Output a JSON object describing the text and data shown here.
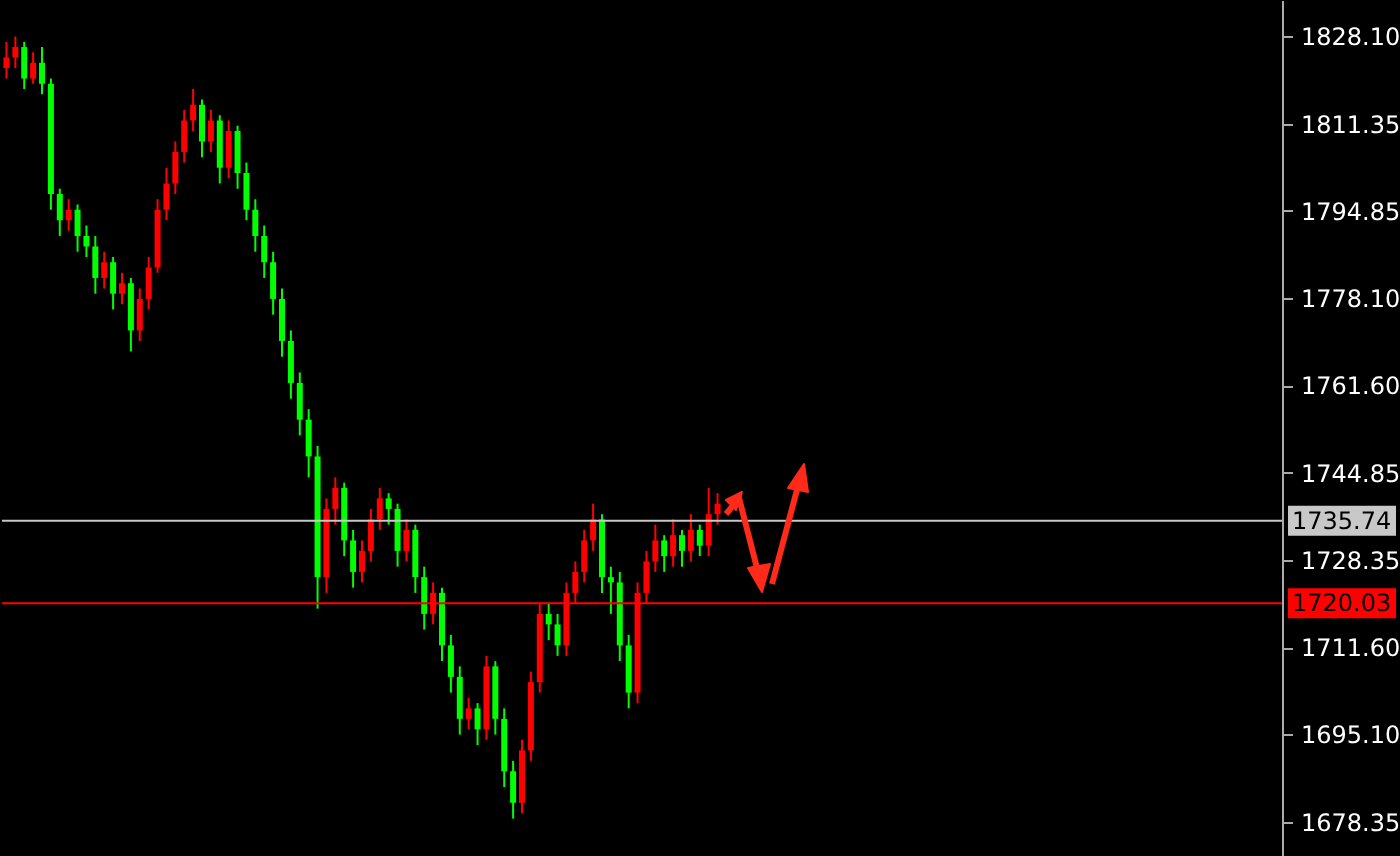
{
  "chart_data": {
    "type": "candlestick",
    "categories": [
      null,
      null,
      null,
      null,
      null,
      null,
      null,
      null,
      null,
      null,
      null,
      null,
      null,
      null,
      null,
      null,
      null,
      null,
      null,
      null,
      null,
      null,
      null,
      null,
      null,
      null,
      null,
      null,
      null,
      null,
      null,
      null,
      null,
      null,
      null,
      null,
      null,
      null,
      null,
      null,
      null,
      null,
      null,
      null,
      null,
      null,
      null,
      null,
      null,
      null,
      null,
      null,
      null,
      null,
      null,
      null,
      null,
      null,
      null,
      null,
      null,
      null,
      null,
      null,
      null,
      null,
      null,
      null,
      null,
      null,
      null,
      null,
      null,
      null,
      null,
      null,
      null,
      null,
      null,
      null,
      null,
      null,
      null,
      null,
      null,
      null,
      null,
      null,
      null,
      null,
      null,
      null,
      null,
      null,
      null,
      null,
      null,
      null,
      null,
      null,
      null,
      null,
      null,
      null,
      null,
      null,
      null,
      null,
      null,
      null,
      null,
      null,
      null,
      null,
      null,
      null,
      null,
      null,
      null,
      null,
      null,
      null,
      null,
      null,
      null,
      null,
      null,
      null,
      null,
      null,
      null,
      null,
      null,
      null,
      null,
      null,
      null,
      null,
      null,
      null,
      null,
      null,
      null,
      null
    ],
    "ohlc": [
      [
        1822,
        1827,
        1820,
        1824
      ],
      [
        1824,
        1828,
        1822,
        1826
      ],
      [
        1826,
        1827,
        1818,
        1820
      ],
      [
        1820,
        1825,
        1819,
        1823
      ],
      [
        1823,
        1826,
        1817,
        1819
      ],
      [
        1819,
        1820,
        1795,
        1798
      ],
      [
        1798,
        1799,
        1790,
        1793
      ],
      [
        1793,
        1797,
        1791,
        1795
      ],
      [
        1795,
        1796,
        1787,
        1790
      ],
      [
        1790,
        1792,
        1786,
        1788
      ],
      [
        1788,
        1790,
        1779,
        1782
      ],
      [
        1782,
        1787,
        1780,
        1785
      ],
      [
        1785,
        1786,
        1776,
        1779
      ],
      [
        1779,
        1783,
        1777,
        1781
      ],
      [
        1781,
        1782,
        1768,
        1772
      ],
      [
        1772,
        1780,
        1770,
        1778
      ],
      [
        1778,
        1786,
        1776,
        1784
      ],
      [
        1784,
        1797,
        1783,
        1795
      ],
      [
        1795,
        1803,
        1793,
        1800
      ],
      [
        1800,
        1808,
        1798,
        1806
      ],
      [
        1806,
        1814,
        1804,
        1812
      ],
      [
        1812,
        1818,
        1810,
        1815
      ],
      [
        1815,
        1816,
        1805,
        1808
      ],
      [
        1808,
        1814,
        1806,
        1812
      ],
      [
        1812,
        1813,
        1800,
        1803
      ],
      [
        1803,
        1812,
        1801,
        1810
      ],
      [
        1810,
        1811,
        1799,
        1802
      ],
      [
        1802,
        1804,
        1793,
        1795
      ],
      [
        1795,
        1797,
        1787,
        1790
      ],
      [
        1790,
        1792,
        1782,
        1785
      ],
      [
        1785,
        1787,
        1775,
        1778
      ],
      [
        1778,
        1780,
        1767,
        1770
      ],
      [
        1770,
        1772,
        1759,
        1762
      ],
      [
        1762,
        1764,
        1752,
        1755
      ],
      [
        1755,
        1757,
        1744,
        1748
      ],
      [
        1748,
        1750,
        1719,
        1725
      ],
      [
        1725,
        1740,
        1722,
        1738
      ],
      [
        1738,
        1744,
        1735,
        1742
      ],
      [
        1742,
        1743,
        1729,
        1732
      ],
      [
        1732,
        1734,
        1723,
        1726
      ],
      [
        1726,
        1732,
        1724,
        1730
      ],
      [
        1730,
        1738,
        1728,
        1736
      ],
      [
        1736,
        1742,
        1734,
        1740
      ],
      [
        1740,
        1741,
        1735,
        1738
      ],
      [
        1738,
        1739,
        1727,
        1730
      ],
      [
        1730,
        1736,
        1728,
        1734
      ],
      [
        1734,
        1735,
        1722,
        1725
      ],
      [
        1725,
        1727,
        1715,
        1718
      ],
      [
        1718,
        1724,
        1716,
        1722
      ],
      [
        1722,
        1723,
        1709,
        1712
      ],
      [
        1712,
        1714,
        1703,
        1706
      ],
      [
        1706,
        1708,
        1695,
        1698
      ],
      [
        1698,
        1702,
        1696,
        1700
      ],
      [
        1700,
        1701,
        1693,
        1696
      ],
      [
        1696,
        1710,
        1694,
        1708
      ],
      [
        1708,
        1709,
        1695,
        1698
      ],
      [
        1698,
        1700,
        1685,
        1688
      ],
      [
        1688,
        1690,
        1679,
        1682
      ],
      [
        1682,
        1694,
        1680,
        1692
      ],
      [
        1692,
        1707,
        1690,
        1705
      ],
      [
        1705,
        1720,
        1703,
        1718
      ],
      [
        1718,
        1720,
        1713,
        1716
      ],
      [
        1716,
        1718,
        1710,
        1712
      ],
      [
        1712,
        1724,
        1710,
        1722
      ],
      [
        1722,
        1728,
        1720,
        1726
      ],
      [
        1726,
        1734,
        1724,
        1732
      ],
      [
        1732,
        1739,
        1730,
        1736
      ],
      [
        1736,
        1737,
        1722,
        1725
      ],
      [
        1725,
        1727,
        1718,
        1724
      ],
      [
        1724,
        1726,
        1709,
        1712
      ],
      [
        1712,
        1714,
        1700,
        1703
      ],
      [
        1703,
        1724,
        1701,
        1722
      ],
      [
        1722,
        1730,
        1720,
        1728
      ],
      [
        1728,
        1735,
        1726,
        1732
      ],
      [
        1732,
        1733,
        1726,
        1729
      ],
      [
        1729,
        1736,
        1727,
        1733
      ],
      [
        1733,
        1734,
        1727,
        1730
      ],
      [
        1730,
        1737,
        1728,
        1734
      ],
      [
        1734,
        1735,
        1729,
        1731
      ],
      [
        1731,
        1742,
        1729,
        1737
      ],
      [
        1737,
        1741,
        1735,
        1739
      ],
      null,
      null,
      null,
      null,
      null,
      null,
      null,
      null,
      null,
      null,
      null,
      null,
      null,
      null,
      null,
      null,
      null,
      null,
      null,
      null,
      null,
      null,
      null,
      null,
      null,
      null,
      null,
      null,
      null,
      null,
      null,
      null,
      null,
      null,
      null,
      null,
      null,
      null,
      null,
      null,
      null,
      null,
      null,
      null,
      null,
      null,
      null,
      null,
      null,
      null,
      null,
      null,
      null,
      null,
      null,
      null,
      null,
      null,
      null,
      null,
      null,
      null,
      null
    ],
    "colors": [
      "#ff0000",
      "#ff0000",
      "#00ff00",
      "#ff0000",
      "#00ff00",
      "#00ff00",
      "#00ff00",
      "#ff0000",
      "#00ff00",
      "#00ff00",
      "#00ff00",
      "#ff0000",
      "#00ff00",
      "#ff0000",
      "#00ff00",
      "#ff0000",
      "#ff0000",
      "#ff0000",
      "#ff0000",
      "#ff0000",
      "#ff0000",
      "#ff0000",
      "#00ff00",
      "#ff0000",
      "#00ff00",
      "#ff0000",
      "#00ff00",
      "#00ff00",
      "#00ff00",
      "#00ff00",
      "#00ff00",
      "#00ff00",
      "#00ff00",
      "#00ff00",
      "#00ff00",
      "#00ff00",
      "#ff0000",
      "#ff0000",
      "#00ff00",
      "#00ff00",
      "#ff0000",
      "#ff0000",
      "#ff0000",
      "#00ff00",
      "#00ff00",
      "#ff0000",
      "#00ff00",
      "#00ff00",
      "#ff0000",
      "#00ff00",
      "#00ff00",
      "#00ff00",
      "#ff0000",
      "#00ff00",
      "#ff0000",
      "#00ff00",
      "#00ff00",
      "#00ff00",
      "#ff0000",
      "#ff0000",
      "#ff0000",
      "#00ff00",
      "#00ff00",
      "#ff0000",
      "#ff0000",
      "#ff0000",
      "#ff0000",
      "#00ff00",
      "#00ff00",
      "#00ff00",
      "#00ff00",
      "#ff0000",
      "#ff0000",
      "#ff0000",
      "#00ff00",
      "#ff0000",
      "#00ff00",
      "#ff0000",
      "#00ff00",
      "#ff0000",
      "#ff0000",
      null,
      null,
      null,
      null,
      null,
      null,
      null,
      null,
      null,
      null,
      null,
      null,
      null,
      null,
      null,
      null,
      null,
      null,
      null,
      null,
      null,
      null,
      null,
      null,
      null,
      null,
      null,
      null,
      null,
      null,
      null,
      null,
      null,
      null,
      null,
      null,
      null,
      null,
      null,
      null,
      null,
      null,
      null,
      null,
      null,
      null,
      null,
      null,
      null,
      null,
      null,
      null,
      null,
      null,
      null,
      null,
      null,
      null,
      null,
      null,
      null,
      null,
      null
    ],
    "ylim": [
      1671.87,
      1834.96
    ],
    "yticks": [
      {
        "value": 1828.1,
        "label": "1828.10"
      },
      1811.35,
      1794.85,
      {
        "value": 1778.1,
        "label": "1778.10"
      },
      {
        "value": 1761.6,
        "label": "1761.60"
      },
      1744.85,
      1728.35,
      {
        "value": 1711.6,
        "label": "1711.60"
      },
      {
        "value": 1695.1,
        "label": "1695.10"
      },
      1678.35
    ],
    "tick_labels": "y",
    "ref_lines": [
      {
        "axis": "y",
        "value": 1735.74,
        "label": "1735.74",
        "color": "#c8c8c8"
      },
      {
        "axis": "y",
        "value": 1720.03,
        "label": "1720.03",
        "color": "#ff0000"
      }
    ]
  }
}
